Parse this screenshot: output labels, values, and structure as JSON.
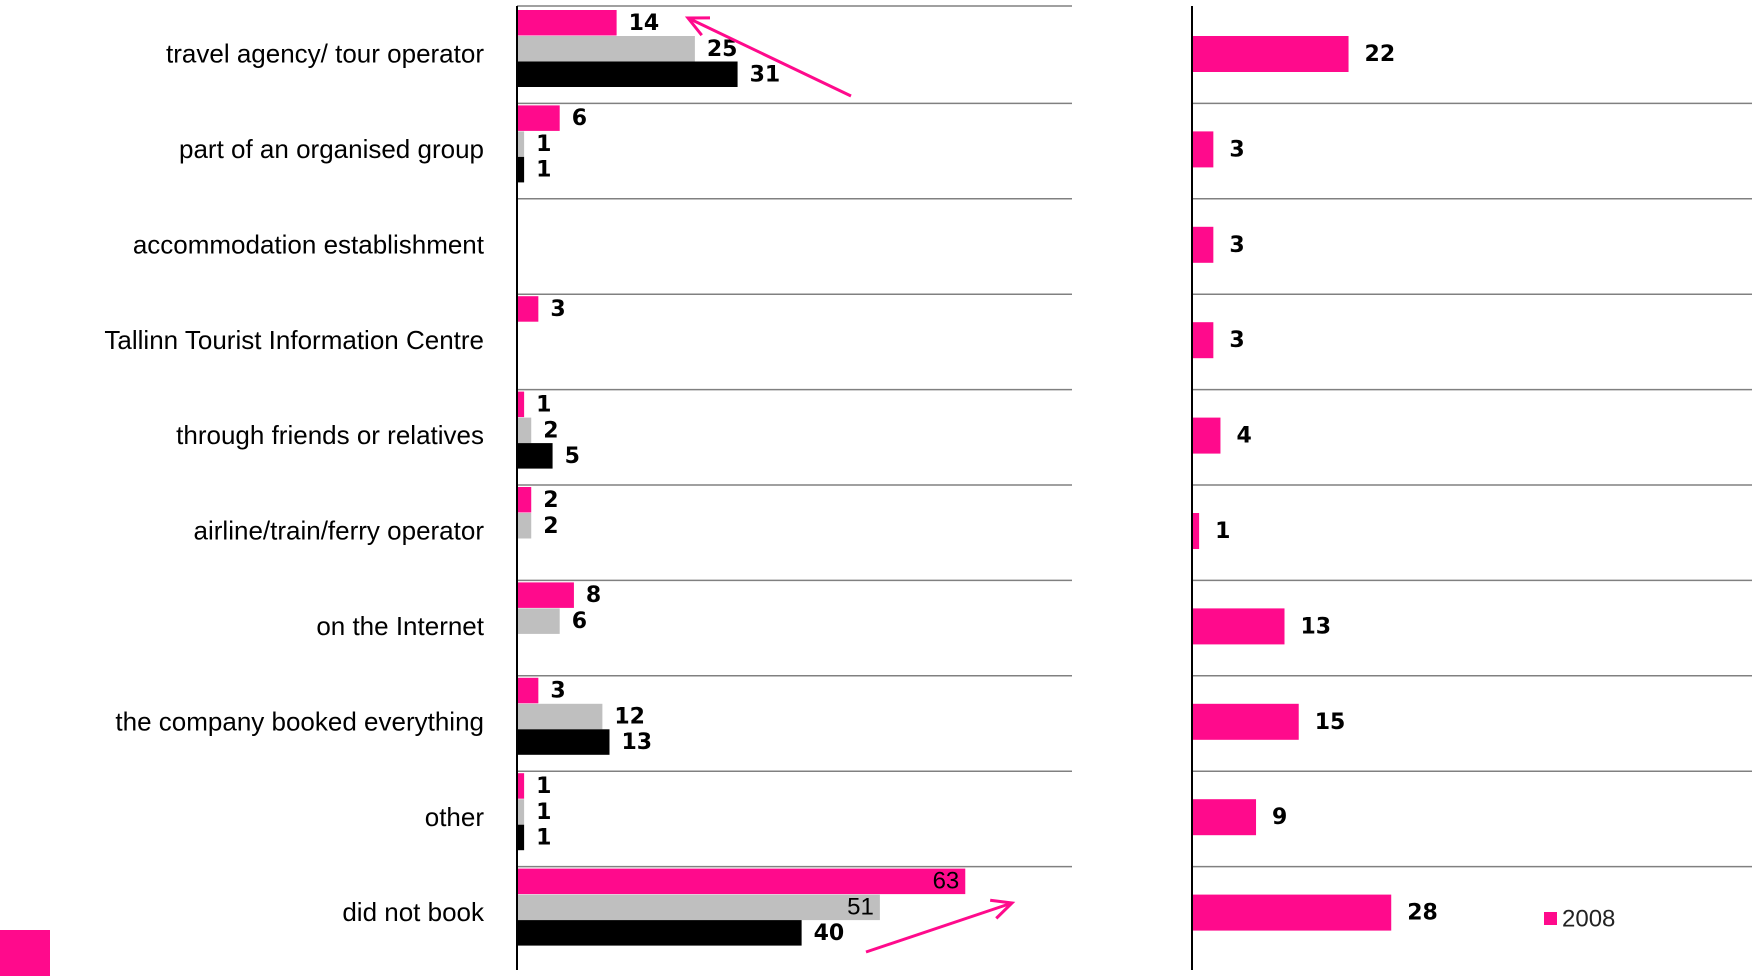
{
  "chart_data": [
    {
      "type": "bar",
      "orientation": "horizontal",
      "categories": [
        "travel agency/ tour operator",
        "part of an organised group",
        "accommodation establishment",
        "Tallinn Tourist Information Centre",
        "through friends or relatives",
        "airline/train/ferry operator",
        "on the Internet",
        "the company booked everything",
        "other",
        "did not book"
      ],
      "series": [
        {
          "color": "#ff0a8c",
          "values": [
            14,
            6,
            null,
            3,
            1,
            2,
            8,
            3,
            1,
            63
          ]
        },
        {
          "color": "#bfbfbf",
          "values": [
            25,
            1,
            null,
            null,
            2,
            2,
            6,
            12,
            1,
            51
          ]
        },
        {
          "color": "#000000",
          "values": [
            31,
            1,
            null,
            null,
            5,
            null,
            null,
            13,
            1,
            40
          ]
        }
      ],
      "xlim": [
        0,
        78
      ],
      "grid": true
    },
    {
      "type": "bar",
      "orientation": "horizontal",
      "series": [
        {
          "name": "2008",
          "color": "#ff0a8c",
          "values": [
            22,
            3,
            3,
            3,
            4,
            1,
            13,
            15,
            9,
            28
          ]
        }
      ],
      "xlim": [
        0,
        78
      ],
      "legend": "bottom-right",
      "grid": true
    }
  ]
}
